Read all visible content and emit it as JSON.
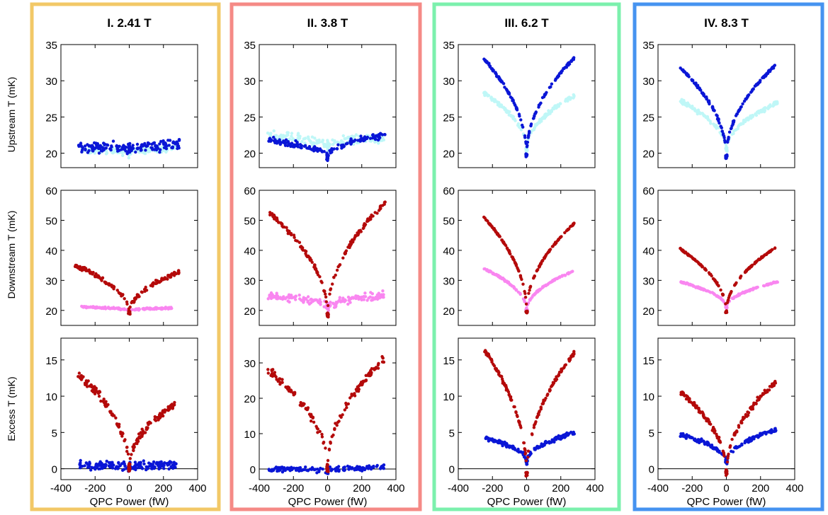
{
  "figure": {
    "ylabels": [
      "Upstream T (mK)",
      "Downstream T (mK)",
      "Excess T (mK)"
    ],
    "xlabel": "QPC Power (fW)"
  },
  "colors": {
    "frame": [
      "#f2c867",
      "#f58a86",
      "#7cf0ad",
      "#4693f0"
    ],
    "upstream_dark": "#0a16d6",
    "upstream_light": "#bff7f7",
    "downstream_dark": "#b40a0a",
    "downstream_light": "#f986f0",
    "excess_red": "#b40a0a",
    "excess_blue": "#0a16d6",
    "zero_line": "#000000"
  },
  "chart_data": [
    {
      "panel": "I",
      "title": "I. 2.41 T",
      "xlim": [
        -400,
        400
      ],
      "xticks": [
        -400,
        -200,
        0,
        200,
        400
      ],
      "rows": [
        {
          "type": "scatter",
          "ylabel": "Upstream T (mK)",
          "ylim": [
            18,
            35
          ],
          "yticks": [
            20,
            25,
            30,
            35
          ],
          "series": [
            {
              "color": "upstream_light",
              "xmax_left": -280,
              "xmax_right": 270,
              "y_left_end": 20.5,
              "y_right_end": 20.7,
              "y_center": 20.0,
              "noise": 0.5
            },
            {
              "color": "upstream_dark",
              "xmax_left": -300,
              "xmax_right": 300,
              "y_left_end": 21.0,
              "y_right_end": 21.2,
              "y_center": 20.6,
              "noise": 0.8
            }
          ]
        },
        {
          "type": "scatter",
          "ylabel": "Downstream T (mK)",
          "ylim": [
            15,
            60
          ],
          "yticks": [
            20,
            30,
            40,
            50,
            60
          ],
          "series": [
            {
              "color": "downstream_light",
              "xmax_left": -280,
              "xmax_right": 250,
              "y_left_end": 21.2,
              "y_right_end": 20.8,
              "y_center": 20.0,
              "noise": 0.3
            },
            {
              "color": "downstream_dark",
              "xmax_left": -320,
              "xmax_right": 300,
              "y_left_end": 35,
              "y_right_end": 33,
              "y_center": 19.0,
              "noise": 0.8
            }
          ]
        },
        {
          "type": "scatter",
          "ylabel": "Excess T (mK)",
          "ylim": [
            -1.5,
            18
          ],
          "yticks": [
            0,
            5,
            10,
            15
          ],
          "zero_line": true,
          "series": [
            {
              "color": "excess_blue",
              "xmax_left": -300,
              "xmax_right": 280,
              "y_left_end": 0.5,
              "y_right_end": 0.5,
              "y_center": 0.3,
              "noise": 0.7
            },
            {
              "color": "excess_red",
              "xmax_left": -300,
              "xmax_right": 270,
              "y_left_end": 13,
              "y_right_end": 9,
              "y_center": 0.2,
              "noise": 0.6
            }
          ]
        }
      ]
    },
    {
      "panel": "II",
      "title": "II. 3.8 T",
      "xlim": [
        -400,
        400
      ],
      "xticks": [
        -400,
        -200,
        0,
        200,
        400
      ],
      "rows": [
        {
          "type": "scatter",
          "ylabel": "Upstream T (mK)",
          "ylim": [
            18,
            35
          ],
          "yticks": [
            20,
            25,
            30,
            35
          ],
          "series": [
            {
              "color": "upstream_light",
              "xmax_left": -350,
              "xmax_right": 330,
              "y_left_end": 22.5,
              "y_right_end": 22.2,
              "y_center": 21.0,
              "noise": 0.8
            },
            {
              "color": "upstream_dark",
              "xmax_left": -350,
              "xmax_right": 340,
              "y_left_end": 21.8,
              "y_right_end": 22.6,
              "y_center": 19.5,
              "noise": 0.5
            }
          ]
        },
        {
          "type": "scatter",
          "ylabel": "Downstream T (mK)",
          "ylim": [
            15,
            60
          ],
          "yticks": [
            20,
            30,
            40,
            50,
            60
          ],
          "series": [
            {
              "color": "downstream_light",
              "xmax_left": -350,
              "xmax_right": 330,
              "y_left_end": 25,
              "y_right_end": 25,
              "y_center": 21.0,
              "noise": 1.4
            },
            {
              "color": "downstream_dark",
              "xmax_left": -350,
              "xmax_right": 340,
              "y_left_end": 53,
              "y_right_end": 56,
              "y_center": 18.5,
              "noise": 0.8
            }
          ]
        },
        {
          "type": "scatter",
          "ylabel": "Excess T (mK)",
          "ylim": [
            -3,
            37
          ],
          "yticks": [
            0,
            10,
            20,
            30
          ],
          "zero_line": true,
          "series": [
            {
              "color": "excess_blue",
              "xmax_left": -350,
              "xmax_right": 330,
              "y_left_end": 0.0,
              "y_right_end": 0.5,
              "y_center": -0.5,
              "noise": 0.8
            },
            {
              "color": "excess_red",
              "xmax_left": -350,
              "xmax_right": 330,
              "y_left_end": 28,
              "y_right_end": 31,
              "y_center": 0.3,
              "noise": 1.2
            }
          ]
        }
      ]
    },
    {
      "panel": "III",
      "title": "III. 6.2 T",
      "xlim": [
        -400,
        400
      ],
      "xticks": [
        -400,
        -200,
        0,
        200,
        400
      ],
      "rows": [
        {
          "type": "scatter",
          "ylabel": "Upstream T (mK)",
          "ylim": [
            18,
            35
          ],
          "yticks": [
            20,
            25,
            30,
            35
          ],
          "series": [
            {
              "color": "upstream_light",
              "xmax_left": -250,
              "xmax_right": 280,
              "y_left_end": 28.3,
              "y_right_end": 28.0,
              "y_center": 20.5,
              "noise": 0.3
            },
            {
              "color": "upstream_dark",
              "xmax_left": -250,
              "xmax_right": 280,
              "y_left_end": 33.0,
              "y_right_end": 33.2,
              "y_center": 19.7,
              "noise": 0.2
            }
          ]
        },
        {
          "type": "scatter",
          "ylabel": "Downstream T (mK)",
          "ylim": [
            15,
            60
          ],
          "yticks": [
            20,
            30,
            40,
            50,
            60
          ],
          "series": [
            {
              "color": "downstream_light",
              "xmax_left": -250,
              "xmax_right": 270,
              "y_left_end": 34,
              "y_right_end": 33,
              "y_center": 20.0,
              "noise": 0.3
            },
            {
              "color": "downstream_dark",
              "xmax_left": -250,
              "xmax_right": 280,
              "y_left_end": 51,
              "y_right_end": 49,
              "y_center": 19.5,
              "noise": 0.3
            }
          ]
        },
        {
          "type": "scatter",
          "ylabel": "Excess T (mK)",
          "ylim": [
            -1.5,
            18
          ],
          "yticks": [
            0,
            5,
            10,
            15
          ],
          "zero_line": true,
          "series": [
            {
              "color": "excess_blue",
              "xmax_left": -250,
              "xmax_right": 280,
              "y_left_end": 4.3,
              "y_right_end": 5.0,
              "y_center": 1.0,
              "noise": 0.3
            },
            {
              "color": "excess_red",
              "xmax_left": -250,
              "xmax_right": 280,
              "y_left_end": 16.5,
              "y_right_end": 16.0,
              "y_center": -0.8,
              "noise": 0.3
            }
          ]
        }
      ]
    },
    {
      "panel": "IV",
      "title": "IV. 8.3 T",
      "xlim": [
        -400,
        400
      ],
      "xticks": [
        -400,
        -200,
        0,
        200,
        400
      ],
      "rows": [
        {
          "type": "scatter",
          "ylabel": "Upstream T (mK)",
          "ylim": [
            18,
            35
          ],
          "yticks": [
            20,
            25,
            30,
            35
          ],
          "series": [
            {
              "color": "upstream_light",
              "xmax_left": -270,
              "xmax_right": 300,
              "y_left_end": 27.2,
              "y_right_end": 27.0,
              "y_center": 20.5,
              "noise": 0.3
            },
            {
              "color": "upstream_dark",
              "xmax_left": -270,
              "xmax_right": 290,
              "y_left_end": 31.8,
              "y_right_end": 32.2,
              "y_center": 19.5,
              "noise": 0.2
            }
          ]
        },
        {
          "type": "scatter",
          "ylabel": "Downstream T (mK)",
          "ylim": [
            15,
            60
          ],
          "yticks": [
            20,
            30,
            40,
            50,
            60
          ],
          "series": [
            {
              "color": "downstream_light",
              "xmax_left": -270,
              "xmax_right": 300,
              "y_left_end": 29.5,
              "y_right_end": 29.5,
              "y_center": 21.0,
              "noise": 0.3
            },
            {
              "color": "downstream_dark",
              "xmax_left": -270,
              "xmax_right": 290,
              "y_left_end": 40.5,
              "y_right_end": 41.0,
              "y_center": 19.5,
              "noise": 0.3
            }
          ]
        },
        {
          "type": "scatter",
          "ylabel": "Excess T (mK)",
          "ylim": [
            -1.5,
            18
          ],
          "yticks": [
            0,
            5,
            10,
            15
          ],
          "zero_line": true,
          "series": [
            {
              "color": "excess_blue",
              "xmax_left": -270,
              "xmax_right": 290,
              "y_left_end": 4.7,
              "y_right_end": 5.4,
              "y_center": 1.0,
              "noise": 0.3
            },
            {
              "color": "excess_red",
              "xmax_left": -270,
              "xmax_right": 290,
              "y_left_end": 10.7,
              "y_right_end": 12.0,
              "y_center": -0.5,
              "noise": 0.4
            }
          ]
        }
      ]
    }
  ]
}
